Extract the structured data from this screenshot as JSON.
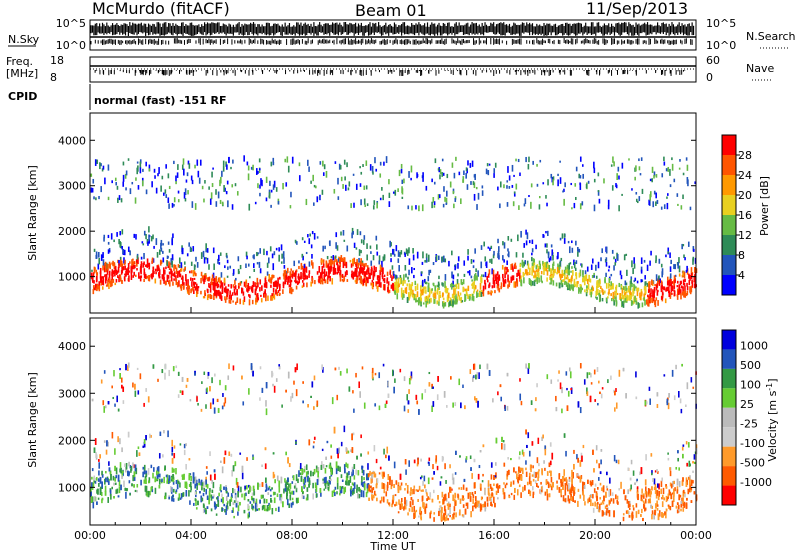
{
  "header": {
    "station": "McMurdo (fitACF)",
    "beam": "Beam 01",
    "date": "11/Sep/2013"
  },
  "noise_panel": {
    "left_label": "N.Sky",
    "right_label": "N.Search",
    "left_ticks": [
      "10^5",
      "10^0"
    ],
    "right_ticks": [
      "10^5",
      "10^0"
    ]
  },
  "freq_panel": {
    "left_label_1": "Freq.",
    "left_label_2": "[MHz]",
    "right_label": "Nave",
    "left_ticks": [
      "18",
      "8"
    ],
    "right_ticks": [
      "60",
      "0"
    ]
  },
  "cpid": {
    "label": "CPID",
    "value": "normal (fast) -151 RF"
  },
  "colors": {
    "power_scale": [
      "#0000ff",
      "#2255bb",
      "#2e8b57",
      "#66bb44",
      "#e8d020",
      "#ff9900",
      "#ff5500",
      "#ff0000"
    ],
    "velocity_scale": [
      "#ff0000",
      "#ff5a00",
      "#ff9a2a",
      "#cccccc",
      "#bbbbbb",
      "#66cc33",
      "#339944",
      "#2255bb",
      "#0000dd"
    ]
  },
  "chart_data": [
    {
      "type": "heatmap",
      "quantity": "power",
      "ylabel": "Slant Range [km]",
      "ylim": [
        200,
        4600
      ],
      "yticks": [
        "1000",
        "2000",
        "3000",
        "4000"
      ],
      "xlim": [
        0,
        24
      ],
      "colorbar": {
        "label": "Power [dB]",
        "range": [
          0,
          32
        ],
        "ticks": [
          "4",
          "8",
          "12",
          "16",
          "20",
          "24",
          "28"
        ]
      },
      "features": [
        {
          "from_hour": 0,
          "to_hour": 24,
          "range_km": [
            600,
            1500
          ],
          "intensity": "strongest 0-12 UT"
        },
        {
          "from_hour": 0,
          "to_hour": 24,
          "range_km": [
            2500,
            3600
          ],
          "intensity": "weak sparse echoes"
        }
      ]
    },
    {
      "type": "heatmap",
      "quantity": "velocity",
      "ylabel": "Slant Range [km]",
      "ylim": [
        200,
        4600
      ],
      "yticks": [
        "1000",
        "2000",
        "3000",
        "4000"
      ],
      "xlim": [
        0,
        24
      ],
      "xlabel": "Time UT",
      "xticks": [
        "00:00",
        "04:00",
        "08:00",
        "12:00",
        "16:00",
        "20:00",
        "00:00"
      ],
      "colorbar": {
        "label": "Velocity [m s^-1]",
        "ticks": [
          "1000",
          "500",
          "100",
          "25",
          "-25",
          "-100",
          "-500",
          "-1000"
        ]
      },
      "features": [
        {
          "from_hour": 0,
          "to_hour": 11,
          "range_km": [
            600,
            1700
          ],
          "velocity": "positive, ~100-500 m/s"
        },
        {
          "from_hour": 11,
          "to_hour": 24,
          "range_km": [
            600,
            1600
          ],
          "velocity": "negative, ~-100 to -500 m/s"
        }
      ]
    }
  ]
}
